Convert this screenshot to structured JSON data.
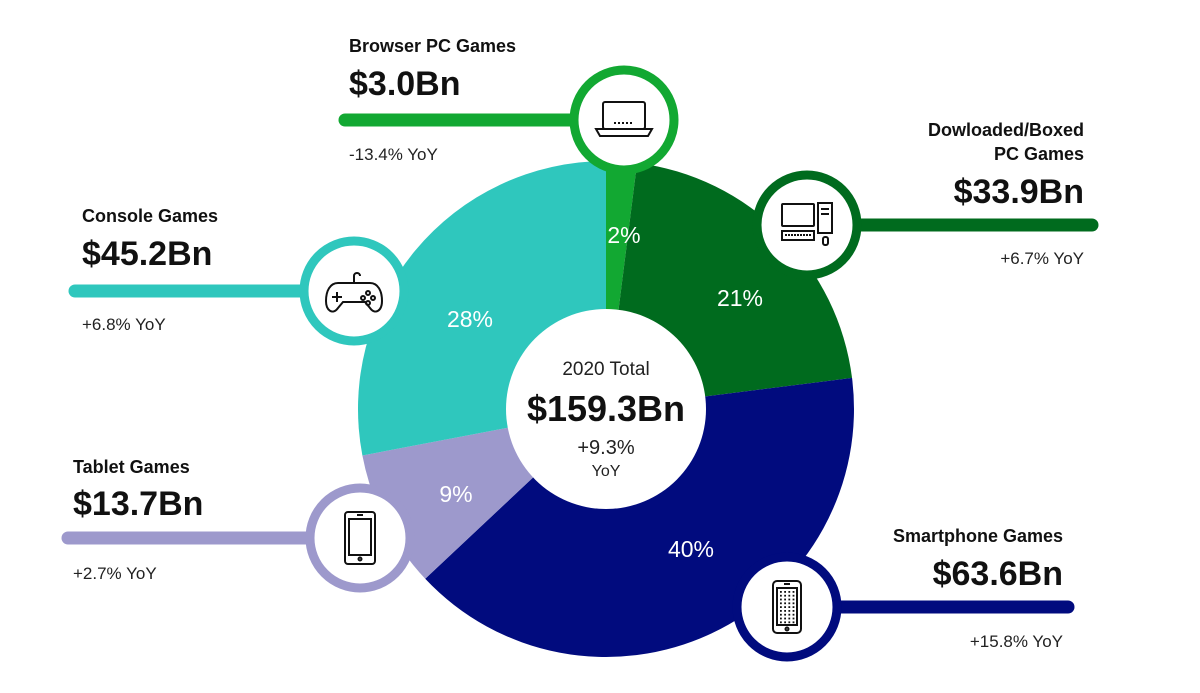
{
  "chart_data": {
    "type": "pie",
    "variant": "donut",
    "center": {
      "label": "2020 Total",
      "value": "$159.3Bn",
      "yoy": "+9.3%",
      "yoy_unit": "YoY"
    },
    "segments": [
      {
        "key": "browser",
        "name": "Browser PC Games",
        "percent_label": "2%",
        "percent": 2,
        "value": 3.0,
        "value_label": "$3.0Bn",
        "yoy": "-13.4% YoY",
        "color": "#12a832",
        "icon": "laptop-icon"
      },
      {
        "key": "downloaded",
        "name_lines": [
          "Dowloaded/Boxed",
          "PC Games"
        ],
        "percent_label": "21%",
        "percent": 21,
        "value": 33.9,
        "value_label": "$33.9Bn",
        "yoy": "+6.7% YoY",
        "color": "#006b1e",
        "icon": "desktop-computer-icon"
      },
      {
        "key": "smartphone",
        "name": "Smartphone Games",
        "percent_label": "40%",
        "percent": 40,
        "value": 63.6,
        "value_label": "$63.6Bn",
        "yoy": "+15.8% YoY",
        "color": "#010b7e",
        "icon": "smartphone-icon"
      },
      {
        "key": "tablet",
        "name": "Tablet Games",
        "percent_label": "9%",
        "percent": 9,
        "value": 13.7,
        "value_label": "$13.7Bn",
        "yoy": "+2.7% YoY",
        "color": "#9d99cc",
        "icon": "tablet-icon"
      },
      {
        "key": "console",
        "name": "Console Games",
        "percent_label": "28%",
        "percent": 28,
        "value": 45.2,
        "value_label": "$45.2Bn",
        "yoy": "+6.8% YoY",
        "color": "#2fc7bd",
        "icon": "gamepad-icon"
      }
    ]
  }
}
